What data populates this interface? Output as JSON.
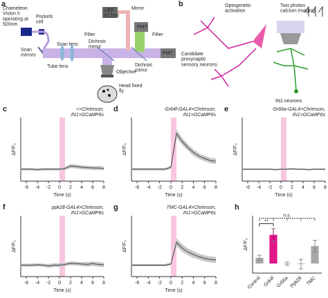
{
  "panel_labels": {
    "a": "a",
    "b": "b"
  },
  "diagram_a": {
    "laser": [
      "Chameleon",
      "Vision II",
      "operating at",
      "920nm"
    ],
    "pockels": [
      "Pockels",
      "cell"
    ],
    "led": [
      "LED",
      "617nm"
    ],
    "mirror": "Mirror",
    "scan_lens": "Scan lens",
    "scan_mirrors": [
      "Scan",
      "mirrors"
    ],
    "tube_lens": "Tube lens",
    "filter_1": "Filter",
    "dichroic_1": [
      "Dichroic",
      "mirror"
    ],
    "pmt_1": "PMT",
    "filter_2": "Filter",
    "pmt_2": "PMT",
    "dichroic_2": [
      "Dichroic",
      "mirror"
    ],
    "objective": "Objective",
    "fly": [
      "Head fixed",
      "fly"
    ]
  },
  "diagram_b": {
    "opto": [
      "Optogenetic",
      "activation"
    ],
    "imaging": [
      "Two photon",
      "calcium imaging"
    ],
    "candidates": [
      "Candidate",
      "presynaptic",
      "sensory neurons"
    ],
    "in1": "IN1 neurons"
  },
  "chart_data": [
    {
      "type": "line",
      "label": "c",
      "title": "+>Chrimson,",
      "subtitle": "IN1>GCaMP6s",
      "title_color": "#e0168a",
      "subtitle_color": "#3a9a3a",
      "xlabel": "Time (s)",
      "ylabel": "ΔF/F₀",
      "x": [
        -7,
        -6,
        -5,
        -4,
        -3,
        -2,
        -1,
        0,
        1,
        2,
        3,
        4,
        5,
        6,
        7,
        8
      ],
      "values": [
        0,
        0,
        0,
        -0.01,
        0,
        0,
        0,
        0,
        0.02,
        0.08,
        0.07,
        0.05,
        0.04,
        0.03,
        0.03,
        0.02
      ],
      "error": [
        0.03,
        0.03,
        0.03,
        0.03,
        0.03,
        0.03,
        0.03,
        0.03,
        0.04,
        0.05,
        0.05,
        0.05,
        0.05,
        0.05,
        0.05,
        0.05
      ],
      "color": "#444444",
      "band_color": "#c8c8c8",
      "stimulus": [
        0,
        1
      ],
      "stimulus_color": "#f8c6df",
      "xlim": [
        -7,
        8
      ],
      "xticks": [
        -6,
        -4,
        -2,
        0,
        2,
        4,
        6,
        8
      ],
      "ylim": [
        -0.3,
        1.3
      ]
    },
    {
      "type": "line",
      "label": "d",
      "title": "Gr64f-GAL4>Chrimson,",
      "subtitle": "IN1>GCaMP6s",
      "title_color": "#e0168a",
      "subtitle_color": "#3a9a3a",
      "xlabel": "Time (s)",
      "ylabel": "ΔF/F₀",
      "x": [
        -7,
        -6,
        -5,
        -4,
        -3,
        -2,
        -1,
        0,
        1,
        2,
        3,
        4,
        5,
        6,
        7,
        8
      ],
      "values": [
        0,
        0,
        0,
        0,
        0,
        0,
        0,
        0.05,
        0.9,
        0.7,
        0.55,
        0.42,
        0.33,
        0.27,
        0.22,
        0.2
      ],
      "error": [
        0.03,
        0.03,
        0.03,
        0.03,
        0.03,
        0.03,
        0.03,
        0.04,
        0.1,
        0.09,
        0.08,
        0.08,
        0.07,
        0.07,
        0.07,
        0.07
      ],
      "color": "#444444",
      "band_color": "#c8c8c8",
      "stimulus": [
        0,
        1
      ],
      "stimulus_color": "#f8c6df",
      "xlim": [
        -7,
        8
      ],
      "xticks": [
        -6,
        -4,
        -2,
        0,
        2,
        4,
        6,
        8
      ],
      "ylim": [
        -0.3,
        1.3
      ]
    },
    {
      "type": "line",
      "label": "e",
      "title": "Gr66a-GAL4>Chrimson,",
      "subtitle": "IN1>GCaMP6s",
      "title_color": "#e0168a",
      "subtitle_color": "#3a9a3a",
      "xlabel": "Time (s)",
      "ylabel": "ΔF/F₀",
      "x": [
        -7,
        -6,
        -5,
        -4,
        -3,
        -2,
        -1,
        0,
        1,
        2,
        3,
        4,
        5,
        6,
        7,
        8
      ],
      "values": [
        0,
        0,
        0,
        0,
        0,
        0,
        -0.01,
        0,
        0,
        0.01,
        0,
        0,
        -0.01,
        0,
        0,
        0
      ],
      "error": [
        0.02,
        0.02,
        0.02,
        0.02,
        0.02,
        0.02,
        0.02,
        0.02,
        0.02,
        0.02,
        0.02,
        0.02,
        0.02,
        0.02,
        0.02,
        0.02
      ],
      "color": "#444444",
      "band_color": "#c8c8c8",
      "stimulus": [
        0,
        1
      ],
      "stimulus_color": "#f8c6df",
      "xlim": [
        -7,
        8
      ],
      "xticks": [
        -6,
        -4,
        -2,
        0,
        2,
        4,
        6,
        8
      ],
      "ylim": [
        -0.3,
        1.3
      ]
    },
    {
      "type": "line",
      "label": "f",
      "title": "ppk28-GAL4>Chrimson,",
      "subtitle": "IN1>GCaMP6s",
      "title_color": "#e0168a",
      "subtitle_color": "#3a9a3a",
      "xlabel": "Time (s)",
      "ylabel": "ΔF/F₀",
      "x": [
        -7,
        -6,
        -5,
        -4,
        -3,
        -2,
        -1,
        0,
        1,
        2,
        3,
        4,
        5,
        6,
        7,
        8
      ],
      "values": [
        0,
        0,
        0,
        0.01,
        0,
        -0.02,
        0,
        0,
        0.02,
        0.05,
        0.04,
        0.03,
        0.02,
        0.04,
        0.02,
        0.01
      ],
      "error": [
        0.04,
        0.04,
        0.04,
        0.04,
        0.04,
        0.05,
        0.05,
        0.05,
        0.05,
        0.05,
        0.05,
        0.05,
        0.06,
        0.06,
        0.06,
        0.06
      ],
      "color": "#444444",
      "band_color": "#c8c8c8",
      "stimulus": [
        0,
        1
      ],
      "stimulus_color": "#f8c6df",
      "xlim": [
        -7,
        8
      ],
      "xticks": [
        -6,
        -4,
        -2,
        0,
        2,
        4,
        6,
        8
      ],
      "ylim": [
        -0.3,
        1.3
      ]
    },
    {
      "type": "line",
      "label": "g",
      "title": "TMC-GAL4>Chrimson,",
      "subtitle": "IN1>GCaMP6s",
      "title_color": "#e0168a",
      "subtitle_color": "#3a9a3a",
      "xlabel": "Time (s)",
      "ylabel": "ΔF/F₀",
      "x": [
        -7,
        -6,
        -5,
        -4,
        -3,
        -2,
        -1,
        0,
        1,
        2,
        3,
        4,
        5,
        6,
        7,
        8
      ],
      "values": [
        0,
        0,
        0,
        0,
        0,
        0,
        0,
        0.03,
        0.6,
        0.45,
        0.35,
        0.28,
        0.22,
        0.18,
        0.15,
        0.14
      ],
      "error": [
        0.03,
        0.03,
        0.03,
        0.03,
        0.03,
        0.03,
        0.03,
        0.04,
        0.1,
        0.1,
        0.09,
        0.09,
        0.08,
        0.08,
        0.08,
        0.08
      ],
      "color": "#444444",
      "band_color": "#c8c8c8",
      "stimulus": [
        0,
        1
      ],
      "stimulus_color": "#f8c6df",
      "xlim": [
        -7,
        8
      ],
      "xticks": [
        -6,
        -4,
        -2,
        0,
        2,
        4,
        6,
        8
      ],
      "ylim": [
        -0.3,
        1.3
      ]
    },
    {
      "type": "bar",
      "label": "h",
      "ylabel": "ΔF/F₀",
      "categories": [
        "Control",
        "Gr64f",
        "Gr66a",
        "Ppk28",
        "TMC"
      ],
      "values": [
        0.18,
        0.9,
        0,
        -0.02,
        0.55
      ],
      "error": [
        0.08,
        0.2,
        0.05,
        0.15,
        0.18
      ],
      "colors": [
        "#a8a8a8",
        "#e0168a",
        "#b8b89a",
        "#b8b89a",
        "#a8a8a8"
      ],
      "ylim": [
        -0.3,
        1.5
      ],
      "annotations": [
        "**",
        "n.s."
      ]
    }
  ]
}
